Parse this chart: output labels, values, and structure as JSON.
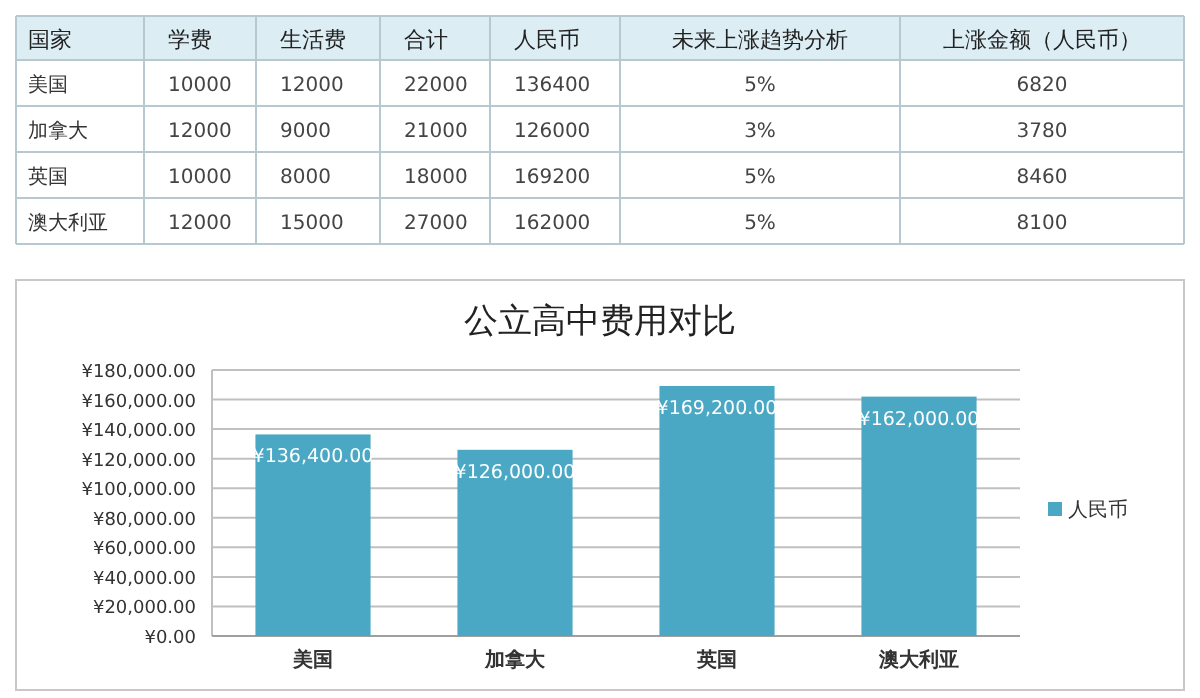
{
  "chart_data": [
    {
      "type": "other",
      "ylabel": "国家",
      "categories": [
        "学费",
        "生活费",
        "合计",
        "人民币",
        "未来上涨趋势分析",
        "上涨金额（人民币）"
      ],
      "y_categories": [
        "美国",
        "加拿大",
        "英国",
        "澳大利亚"
      ],
      "cell_labels": [
        [
          "10000",
          "12000",
          "22000",
          "136400",
          "5%",
          "6820"
        ],
        [
          "12000",
          "9000",
          "21000",
          "126000",
          "3%",
          "3780"
        ],
        [
          "10000",
          "8000",
          "18000",
          "169200",
          "5%",
          "8460"
        ],
        [
          "12000",
          "15000",
          "27000",
          "162000",
          "5%",
          "8100"
        ]
      ]
    },
    {
      "type": "bar",
      "title": "公立高中费用对比",
      "categories": [
        "美国",
        "加拿大",
        "英国",
        "澳大利亚"
      ],
      "series": [
        {
          "name": "人民币",
          "color": "#4aa8c4",
          "values": [
            136400,
            126000,
            169200,
            162000
          ],
          "value_labels": [
            "¥136,400.00",
            "¥126,000.00",
            "¥169,200.00",
            "¥162,000.00"
          ]
        }
      ],
      "ylim": [
        0,
        180000
      ],
      "yticks": [
        {
          "value": 0,
          "label": "¥0.00"
        },
        {
          "value": 20000,
          "label": "¥20,000.00"
        },
        {
          "value": 40000,
          "label": "¥40,000.00"
        },
        {
          "value": 60000,
          "label": "¥60,000.00"
        },
        {
          "value": 80000,
          "label": "¥80,000.00"
        },
        {
          "value": 100000,
          "label": "¥100,000.00"
        },
        {
          "value": 120000,
          "label": "¥120,000.00"
        },
        {
          "value": 140000,
          "label": "¥140,000.00"
        },
        {
          "value": 160000,
          "label": "¥160,000.00"
        },
        {
          "value": 180000,
          "label": "¥180,000.00"
        }
      ],
      "grid": "y",
      "legend": "right"
    }
  ]
}
